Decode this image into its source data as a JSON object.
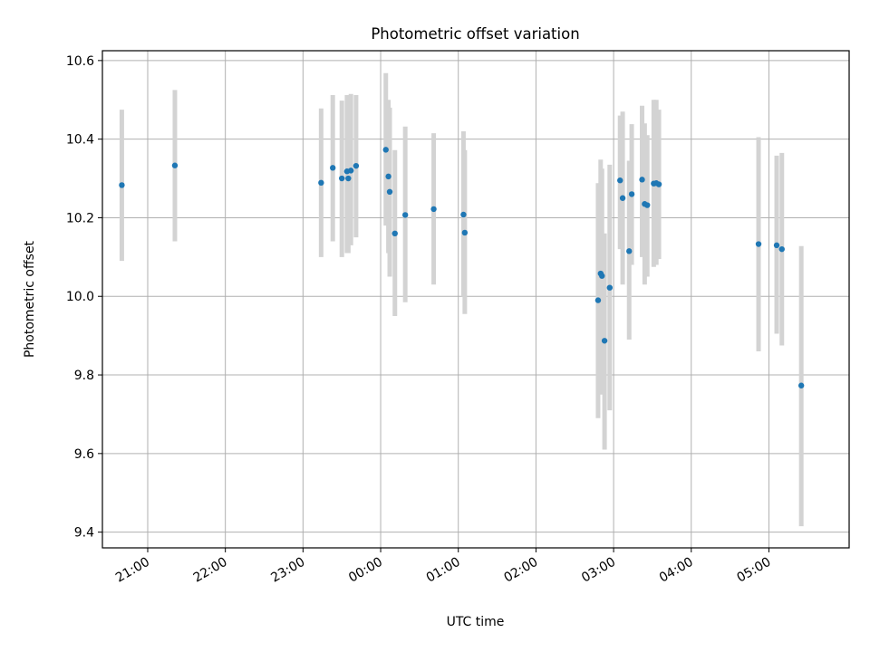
{
  "chart_data": {
    "type": "scatter",
    "title": "Photometric offset variation",
    "xlabel": "UTC time",
    "ylabel": "Photometric offset",
    "x_ticks": [
      "21:00",
      "22:00",
      "23:00",
      "00:00",
      "01:00",
      "02:00",
      "03:00",
      "04:00",
      "05:00"
    ],
    "x_range": [
      "20:25",
      "06:02"
    ],
    "y_ticks": [
      "9.4",
      "9.6",
      "9.8",
      "10.0",
      "10.2",
      "10.4",
      "10.6"
    ],
    "ylim": [
      9.36,
      10.625
    ],
    "grid": true,
    "colors": {
      "point": "#1f77b4",
      "errorbar": "#d3d3d3",
      "grid": "#b0b0b0"
    },
    "points": [
      {
        "t": "20:40",
        "y": 10.283,
        "lo": 10.09,
        "hi": 10.475
      },
      {
        "t": "21:21",
        "y": 10.333,
        "lo": 10.14,
        "hi": 10.525
      },
      {
        "t": "23:14",
        "y": 10.289,
        "lo": 10.1,
        "hi": 10.478
      },
      {
        "t": "23:23",
        "y": 10.327,
        "lo": 10.14,
        "hi": 10.512
      },
      {
        "t": "23:30",
        "y": 10.3,
        "lo": 10.1,
        "hi": 10.498
      },
      {
        "t": "23:34",
        "y": 10.318,
        "lo": 10.11,
        "hi": 10.512
      },
      {
        "t": "23:35",
        "y": 10.3,
        "lo": 10.11,
        "hi": 10.5
      },
      {
        "t": "23:37",
        "y": 10.32,
        "lo": 10.13,
        "hi": 10.515
      },
      {
        "t": "23:41",
        "y": 10.332,
        "lo": 10.15,
        "hi": 10.512
      },
      {
        "t": "00:04",
        "y": 10.373,
        "lo": 10.18,
        "hi": 10.568
      },
      {
        "t": "00:06",
        "y": 10.305,
        "lo": 10.11,
        "hi": 10.5
      },
      {
        "t": "00:07",
        "y": 10.266,
        "lo": 10.05,
        "hi": 10.48
      },
      {
        "t": "00:11",
        "y": 10.16,
        "lo": 9.95,
        "hi": 10.372
      },
      {
        "t": "00:19",
        "y": 10.207,
        "lo": 9.985,
        "hi": 10.432
      },
      {
        "t": "00:41",
        "y": 10.222,
        "lo": 10.03,
        "hi": 10.415
      },
      {
        "t": "01:04",
        "y": 10.208,
        "lo": 10.0,
        "hi": 10.42
      },
      {
        "t": "01:05",
        "y": 10.162,
        "lo": 9.955,
        "hi": 10.372
      },
      {
        "t": "02:48",
        "y": 9.99,
        "lo": 9.69,
        "hi": 10.288
      },
      {
        "t": "02:50",
        "y": 10.058,
        "lo": 9.75,
        "hi": 10.348
      },
      {
        "t": "02:51",
        "y": 10.052,
        "lo": 9.78,
        "hi": 10.325
      },
      {
        "t": "02:53",
        "y": 9.887,
        "lo": 9.61,
        "hi": 10.16
      },
      {
        "t": "02:57",
        "y": 10.022,
        "lo": 9.71,
        "hi": 10.335
      },
      {
        "t": "03:05",
        "y": 10.295,
        "lo": 10.12,
        "hi": 10.46
      },
      {
        "t": "03:07",
        "y": 10.25,
        "lo": 10.03,
        "hi": 10.47
      },
      {
        "t": "03:12",
        "y": 10.115,
        "lo": 9.89,
        "hi": 10.345
      },
      {
        "t": "03:14",
        "y": 10.26,
        "lo": 10.08,
        "hi": 10.438
      },
      {
        "t": "03:22",
        "y": 10.297,
        "lo": 10.1,
        "hi": 10.485
      },
      {
        "t": "03:24",
        "y": 10.235,
        "lo": 10.03,
        "hi": 10.44
      },
      {
        "t": "03:26",
        "y": 10.232,
        "lo": 10.05,
        "hi": 10.41
      },
      {
        "t": "03:31",
        "y": 10.287,
        "lo": 10.075,
        "hi": 10.5
      },
      {
        "t": "03:33",
        "y": 10.288,
        "lo": 10.08,
        "hi": 10.5
      },
      {
        "t": "03:35",
        "y": 10.285,
        "lo": 10.095,
        "hi": 10.475
      },
      {
        "t": "04:52",
        "y": 10.133,
        "lo": 9.86,
        "hi": 10.405
      },
      {
        "t": "05:06",
        "y": 10.13,
        "lo": 9.905,
        "hi": 10.358
      },
      {
        "t": "05:10",
        "y": 10.12,
        "lo": 9.875,
        "hi": 10.365
      },
      {
        "t": "05:25",
        "y": 9.773,
        "lo": 9.415,
        "hi": 10.128
      }
    ]
  }
}
